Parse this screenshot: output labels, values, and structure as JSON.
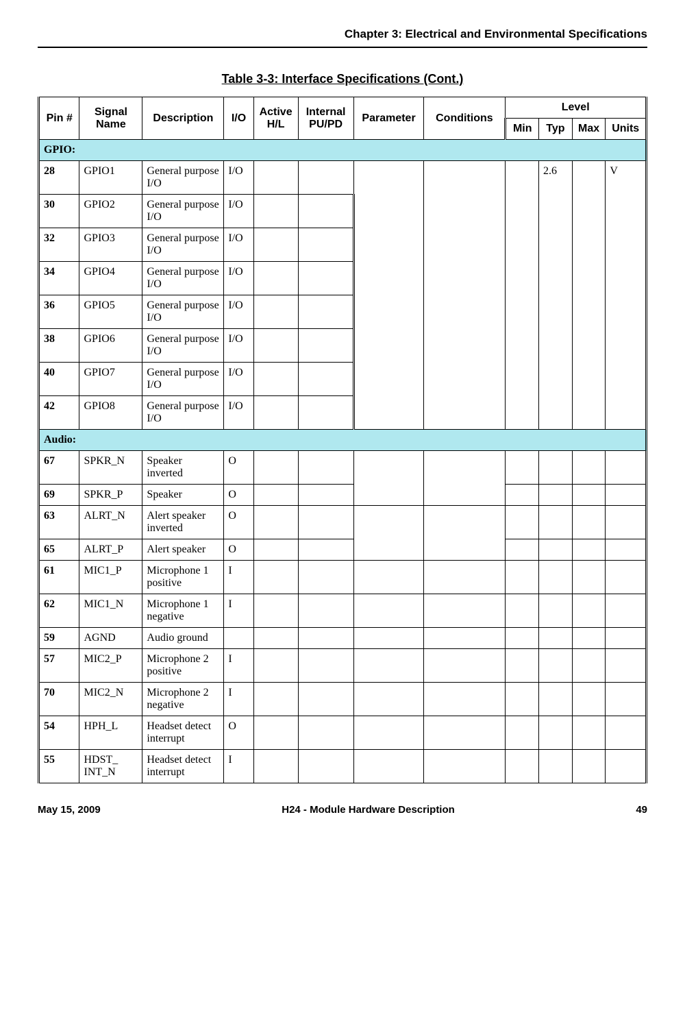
{
  "header": {
    "chapter": "Chapter 3:  Electrical and Environmental Specifications"
  },
  "table": {
    "title": "Table 3-3: Interface Specifications (Cont.)",
    "columns": {
      "pin": "Pin #",
      "signal": "Signal Name",
      "description": "Description",
      "io": "I/O",
      "active": "Active H/L",
      "pupd": "Internal PU/PD",
      "parameter": "Parameter",
      "conditions": "Conditions",
      "level": "Level",
      "min": "Min",
      "typ": "Typ",
      "max": "Max",
      "units": "Units"
    },
    "sections": {
      "gpio": "GPIO:",
      "audio": "Audio:"
    },
    "gpio_typ": "2.6",
    "gpio_units": "V",
    "gpio_rows": [
      {
        "pin": "28",
        "signal": "GPIO1",
        "desc": "General pur­pose I/O",
        "io": "I/O"
      },
      {
        "pin": "30",
        "signal": "GPIO2",
        "desc": "General pur­pose I/O",
        "io": "I/O"
      },
      {
        "pin": "32",
        "signal": "GPIO3",
        "desc": "General pur­pose I/O",
        "io": "I/O"
      },
      {
        "pin": "34",
        "signal": "GPIO4",
        "desc": "General pur­pose I/O",
        "io": "I/O"
      },
      {
        "pin": "36",
        "signal": "GPIO5",
        "desc": "General pur­pose I/O",
        "io": "I/O"
      },
      {
        "pin": "38",
        "signal": "GPIO6",
        "desc": "General pur­pose I/O",
        "io": "I/O"
      },
      {
        "pin": "40",
        "signal": "GPIO7",
        "desc": "General pur­pose I/O",
        "io": "I/O"
      },
      {
        "pin": "42",
        "signal": "GPIO8",
        "desc": "General pur­pose I/O",
        "io": "I/O"
      }
    ],
    "audio_rows": [
      {
        "pin": "67",
        "signal": "SPKR_N",
        "desc": "Speaker inverted",
        "io": "O",
        "merge_next": true
      },
      {
        "pin": "69",
        "signal": "SPKR_P",
        "desc": "Speaker",
        "io": "O",
        "merged": true
      },
      {
        "pin": "63",
        "signal": "ALRT_N",
        "desc": "Alert speaker inverted",
        "io": "O",
        "merge_next": true
      },
      {
        "pin": "65",
        "signal": "ALRT_P",
        "desc": "Alert speaker",
        "io": "O",
        "merged": true
      },
      {
        "pin": "61",
        "signal": "MIC1_P",
        "desc": "Microphone 1 positive",
        "io": "I"
      },
      {
        "pin": "62",
        "signal": "MIC1_N",
        "desc": "Microphone 1 negative",
        "io": "I"
      },
      {
        "pin": "59",
        "signal": "AGND",
        "desc": "Audio ground",
        "io": ""
      },
      {
        "pin": "57",
        "signal": "MIC2_P",
        "desc": "Microphone 2 positive",
        "io": "I"
      },
      {
        "pin": "70",
        "signal": "MIC2_N",
        "desc": "Microphone 2 negative",
        "io": "I"
      },
      {
        "pin": "54",
        "signal": "HPH_L",
        "desc": "Headset detect inter­rupt",
        "io": "O"
      },
      {
        "pin": "55",
        "signal": "HDST_ INT_N",
        "desc": "Headset detect inter­rupt",
        "io": "I"
      }
    ]
  },
  "footer": {
    "date": "May 15, 2009",
    "doc": "H24 - Module Hardware Description",
    "page": "49"
  }
}
